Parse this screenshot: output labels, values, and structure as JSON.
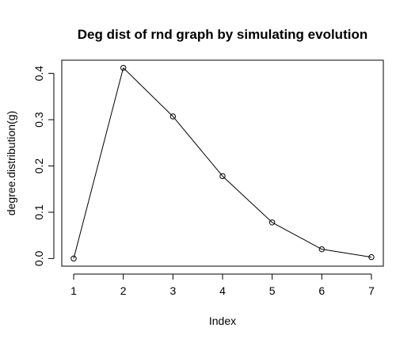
{
  "chart_data": {
    "type": "line",
    "title": "Deg dist of rnd graph by simulating evolution",
    "xlabel": "Index",
    "ylabel": "degree.distribution(g)",
    "x": [
      1,
      2,
      3,
      4,
      5,
      6,
      7
    ],
    "y": [
      0.0,
      0.412,
      0.307,
      0.178,
      0.078,
      0.02,
      0.003
    ],
    "x_ticks": [
      "1",
      "2",
      "3",
      "4",
      "5",
      "6",
      "7"
    ],
    "y_ticks": [
      "0.0",
      "0.1",
      "0.2",
      "0.3",
      "0.4"
    ],
    "xlim": [
      0.76,
      7.24
    ],
    "ylim": [
      -0.0165,
      0.4285
    ],
    "marker": "open-circle",
    "line_color": "#000000",
    "grid": false,
    "legend": "none"
  }
}
